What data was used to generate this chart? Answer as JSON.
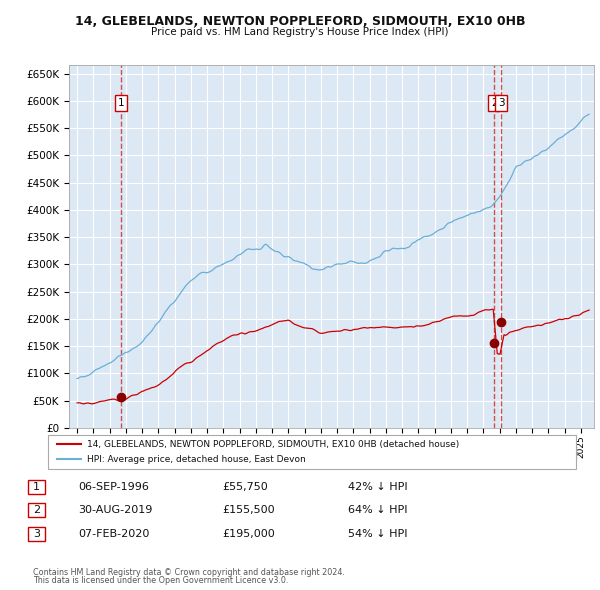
{
  "title": "14, GLEBELANDS, NEWTON POPPLEFORD, SIDMOUTH, EX10 0HB",
  "subtitle": "Price paid vs. HM Land Registry's House Price Index (HPI)",
  "ylim": [
    0,
    666000
  ],
  "xlim_start": 1993.5,
  "xlim_end": 2025.8,
  "bg_color": "#dce9f5",
  "grid_color": "#ffffff",
  "sale_dates": [
    1996.68,
    2019.66,
    2020.09
  ],
  "sale_prices": [
    55750,
    155500,
    195000
  ],
  "sale_labels": [
    "1",
    "2",
    "3"
  ],
  "legend_house": "14, GLEBELANDS, NEWTON POPPLEFORD, SIDMOUTH, EX10 0HB (detached house)",
  "legend_hpi": "HPI: Average price, detached house, East Devon",
  "table_rows": [
    [
      "1",
      "06-SEP-1996",
      "£55,750",
      "42% ↓ HPI"
    ],
    [
      "2",
      "30-AUG-2019",
      "£155,500",
      "64% ↓ HPI"
    ],
    [
      "3",
      "07-FEB-2020",
      "£195,000",
      "54% ↓ HPI"
    ]
  ],
  "footnote1": "Contains HM Land Registry data © Crown copyright and database right 2024.",
  "footnote2": "This data is licensed under the Open Government Licence v3.0.",
  "hpi_color": "#6baed6",
  "sale_color": "#cc0000",
  "vline_color": "#cc3333",
  "marker_color": "#8b0000"
}
